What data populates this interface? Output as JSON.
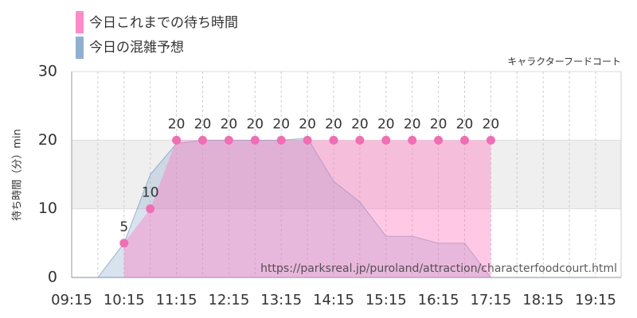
{
  "chart_data": {
    "type": "area",
    "legend": [
      {
        "name": "今日これまでの待ち時間",
        "color": "#ff8ac8"
      },
      {
        "name": "今日の混雑予想",
        "color": "#8fb0d0"
      }
    ],
    "subtitle": "キャラクターフードコート",
    "y_label": "待ち時間（分）min",
    "watermark": "https://parksreal.jp/puroland/attraction/characterfoodcourt.html",
    "categories": [
      "09:15",
      null,
      "10:15",
      null,
      "11:15",
      null,
      "12:15",
      null,
      "13:15",
      null,
      "14:15",
      null,
      "15:15",
      null,
      "16:15",
      null,
      "17:15",
      null,
      "18:15",
      null,
      "19:15"
    ],
    "series": [
      {
        "name": "今日の混雑予想",
        "color": "#8fb0d0",
        "values": [
          0,
          0,
          5,
          15,
          19.5,
          20,
          20,
          20,
          20,
          20.3,
          14,
          11,
          6,
          6,
          5,
          5,
          0,
          0,
          0,
          0,
          0
        ]
      },
      {
        "name": "今日これまでの待ち時間",
        "color": "#f06eb4",
        "values": [
          null,
          null,
          5,
          10,
          20,
          20,
          20,
          20,
          20,
          20,
          20,
          20,
          20,
          20,
          20,
          20,
          20,
          null,
          null,
          null,
          null
        ]
      }
    ],
    "ylim": [
      0,
      30
    ],
    "yticks": [
      0,
      10,
      20,
      30
    ],
    "highlight_band": [
      10,
      20
    ],
    "grid": true
  }
}
